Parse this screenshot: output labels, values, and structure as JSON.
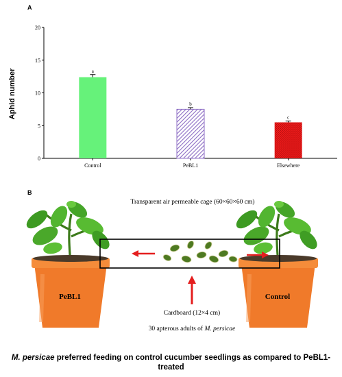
{
  "panel_a_label": "A",
  "panel_b_label": "B",
  "chart_data": {
    "type": "bar",
    "ylabel": "Aphid number",
    "ylim": [
      0,
      20
    ],
    "yticks": [
      0,
      5,
      10,
      15,
      20
    ],
    "categories": [
      "Control",
      "PeBL1",
      "Elsewhere"
    ],
    "values": [
      12.4,
      7.5,
      5.5
    ],
    "errors": [
      0.4,
      0.25,
      0.2
    ],
    "significance_letters": [
      "a",
      "b",
      "c"
    ],
    "bar_colors": [
      "#66f27a",
      "#8c6cc4",
      "#ee1c1c"
    ],
    "bar_patterns": [
      "solid",
      "diagonal-hatch",
      "cross-hatch"
    ]
  },
  "diagram": {
    "cage_label": "Transparent  air permeable cage (60×60×60 cm)",
    "cardboard_label": "Cardboard (12×4 cm)",
    "adults_label_prefix": "30 apterous adults of ",
    "adults_label_species": "M. persicae",
    "left_pot_label": "PeBL1",
    "right_pot_label": "Control",
    "arrow_color": "#e41e1e",
    "pot_color": "#f07a2a"
  },
  "caption": {
    "species": "M. persicae",
    "text": " preferred feeding on control cucumber seedlings as compared to PeBL1-treated"
  }
}
